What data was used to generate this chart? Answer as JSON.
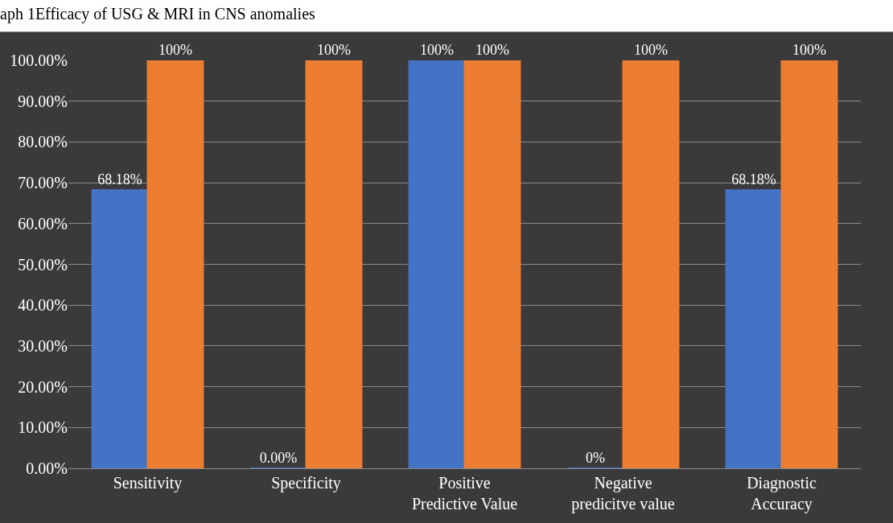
{
  "chart_data": {
    "type": "bar",
    "title": "aph 1Efficacy of USG & MRI in CNS anomalies",
    "categories": [
      "Sensitivity",
      "Specificity",
      "Positive Predictive Value",
      "Negative predicitve value",
      "Diagnostic Accuracy"
    ],
    "series": [
      {
        "color": "#4472c4",
        "values": [
          68.18,
          0,
          100,
          0,
          68.18
        ],
        "value_labels": [
          "68.18%",
          "0.00%",
          "100%",
          "0%",
          "68.18%"
        ]
      },
      {
        "color": "#ed7d31",
        "values": [
          100,
          100,
          100,
          100,
          100
        ],
        "value_labels": [
          "100%",
          "100%",
          "100%",
          "100%",
          "100%"
        ]
      }
    ],
    "ylim": [
      0,
      100
    ],
    "yticks": [
      {
        "value": 0,
        "label": "0.00%"
      },
      {
        "value": 10,
        "label": "10.00%"
      },
      {
        "value": 20,
        "label": "20.00%"
      },
      {
        "value": 30,
        "label": "30.00%"
      },
      {
        "value": 40,
        "label": "40.00%"
      },
      {
        "value": 50,
        "label": "50.00%"
      },
      {
        "value": 60,
        "label": "60.00%"
      },
      {
        "value": 70,
        "label": "70.00%"
      },
      {
        "value": 80,
        "label": "80.00%"
      },
      {
        "value": 90,
        "label": "90.00%"
      },
      {
        "value": 100,
        "label": "100.00%"
      }
    ],
    "grid": "y",
    "legend": false
  }
}
